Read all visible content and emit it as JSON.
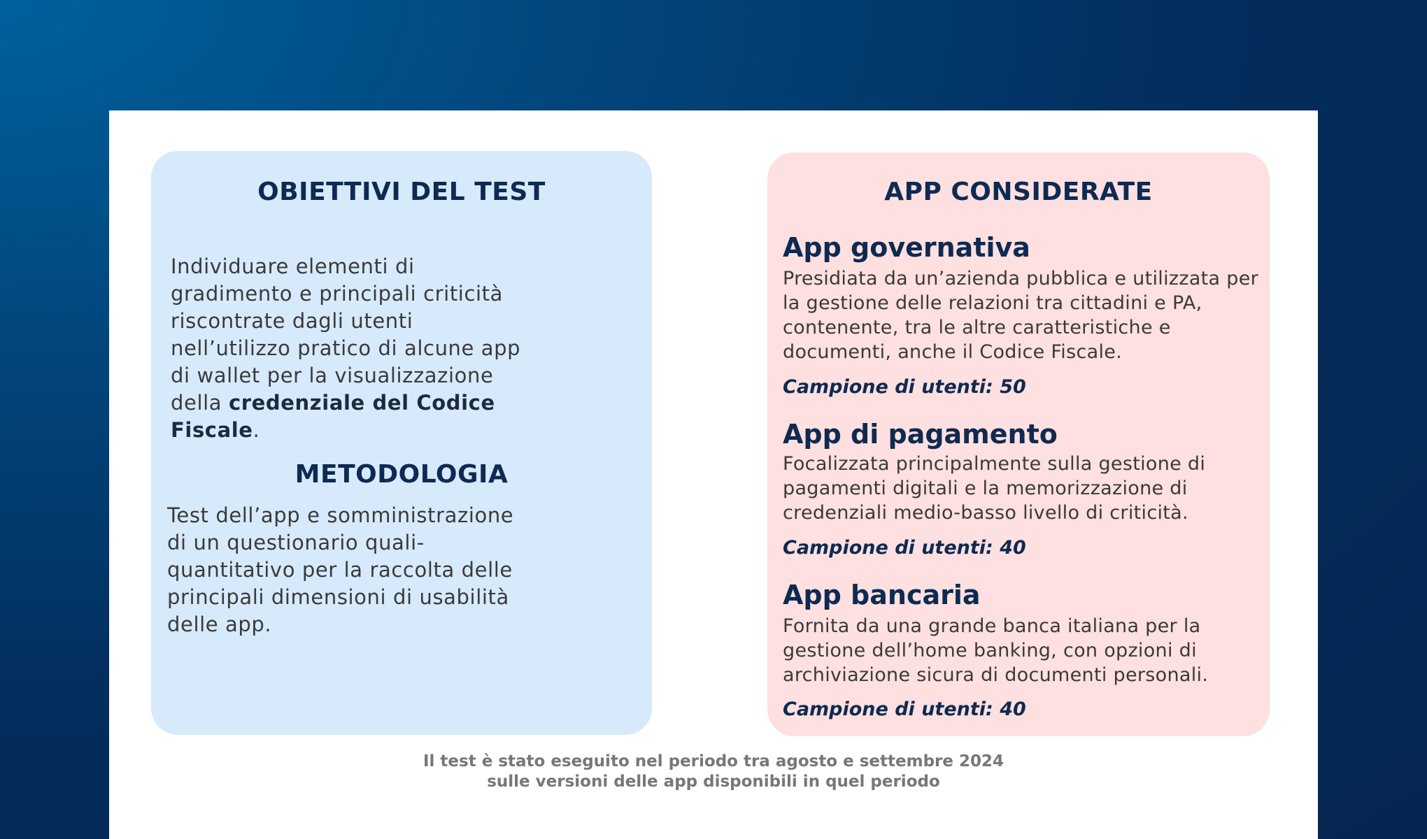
{
  "objectives": {
    "title": "OBIETTIVI DEL TEST",
    "text": "Individuare elementi di gradimento e principali criticità riscontrate dagli utenti nell’utilizzo pratico di alcune app di wallet per la visualizzazione della",
    "highlight": "credenziale del Codice Fiscale",
    "end": "."
  },
  "methodology": {
    "title": "METODOLOGIA",
    "text": "Test dell’app e somministrazione di un questionario quali-quantitativo per la raccolta delle principali dimensioni di usabilità delle app."
  },
  "apps": {
    "title": "APP CONSIDERATE",
    "items": [
      {
        "name": "App governativa",
        "description": "Presidiata da un’azienda pubblica e utilizzata per la gestione delle relazioni tra cittadini e PA, contenente, tra le altre caratteristiche e documenti, anche il Codice Fiscale.",
        "sample": "Campione di utenti: 50"
      },
      {
        "name": "App di pagamento",
        "description": "Focalizzata principalmente sulla gestione di pagamenti digitali e la memorizzazione di credenziali medio-basso livello di criticità.",
        "sample": "Campione di utenti: 40"
      },
      {
        "name": "App bancaria",
        "description": "Fornita da una grande banca italiana per la gestione dell’home banking, con opzioni di archiviazione sicura di documenti personali.",
        "sample": "Campione di utenti: 40"
      }
    ]
  },
  "footer": {
    "line1": "Il test è stato eseguito nel periodo tra agosto e settembre 2024",
    "line2": "sulle versioni delle app disponibili in quel periodo"
  }
}
